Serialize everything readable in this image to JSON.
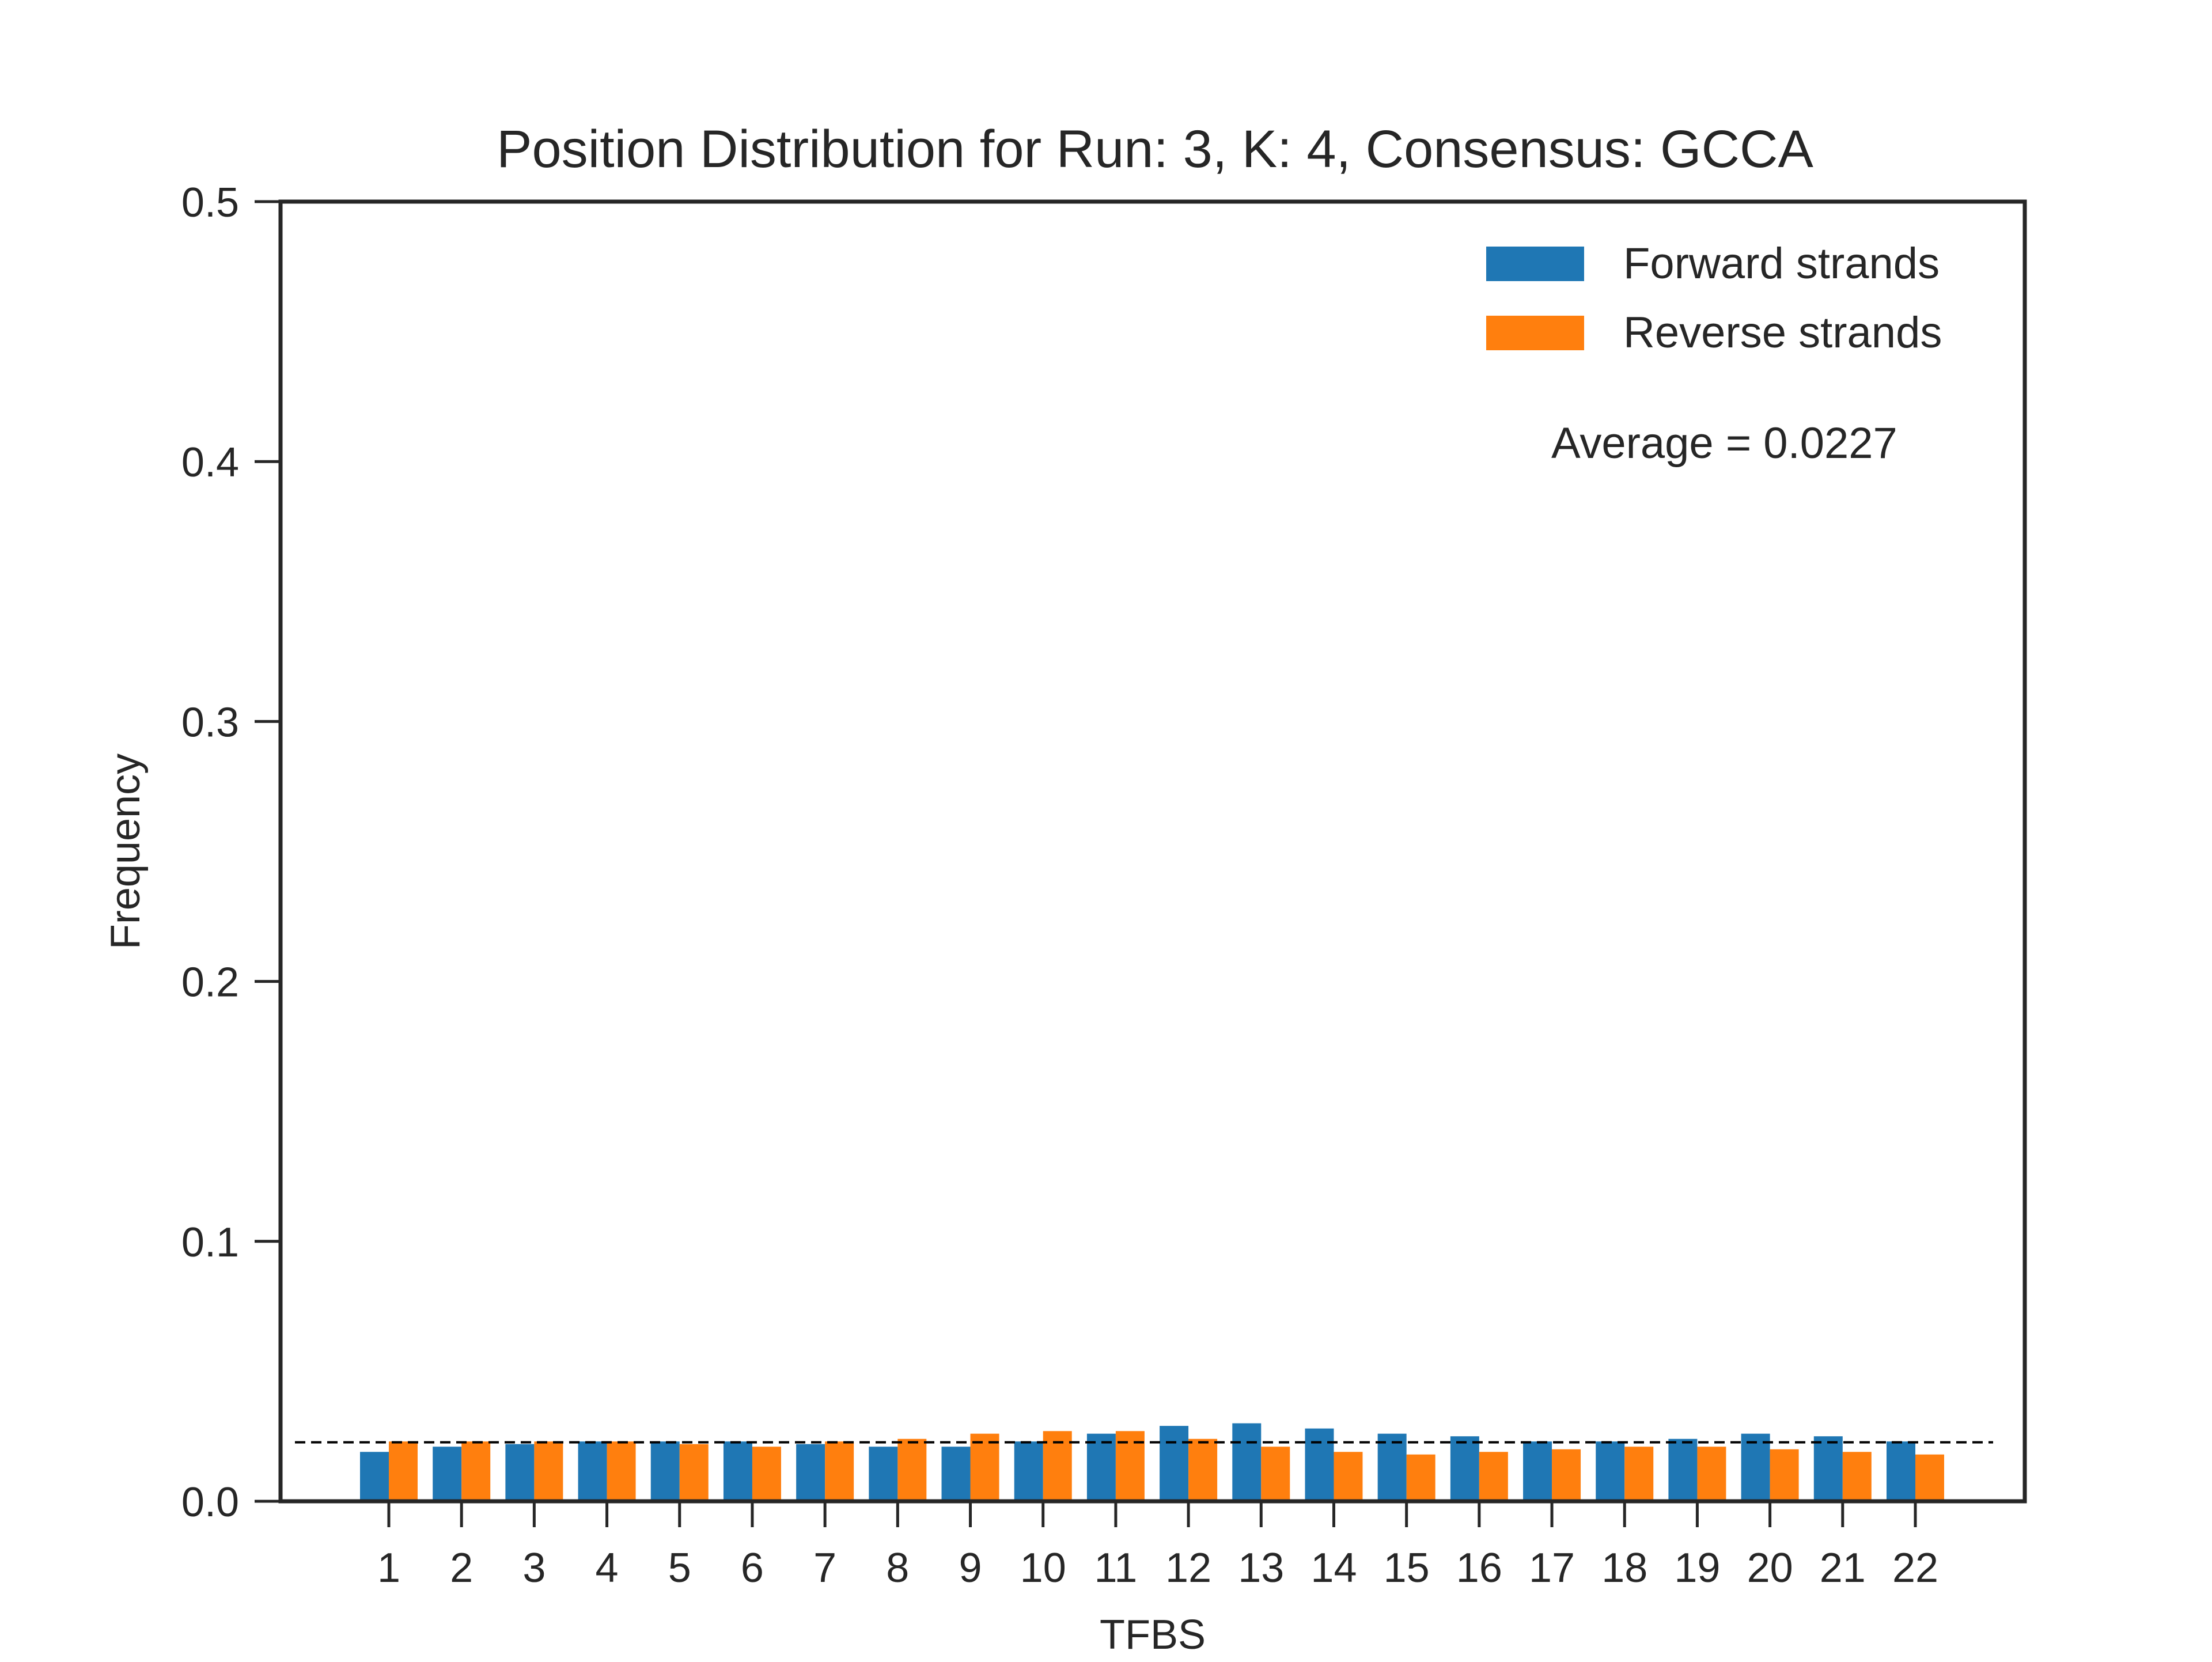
{
  "chart_data": {
    "type": "bar",
    "title": "Position Distribution for Run: 3, K: 4, Consensus: GCCA",
    "xlabel": "TFBS",
    "ylabel": "Frequency",
    "ylim": [
      0,
      0.5
    ],
    "yticks": [
      "0.0",
      "0.1",
      "0.2",
      "0.3",
      "0.4",
      "0.5"
    ],
    "categories": [
      "1",
      "2",
      "3",
      "4",
      "5",
      "6",
      "7",
      "8",
      "9",
      "10",
      "11",
      "12",
      "13",
      "14",
      "15",
      "16",
      "17",
      "18",
      "19",
      "20",
      "21",
      "22"
    ],
    "series": [
      {
        "name": "Forward strands",
        "color": "#1f77b4",
        "values": [
          0.019,
          0.021,
          0.022,
          0.023,
          0.023,
          0.023,
          0.022,
          0.021,
          0.021,
          0.023,
          0.026,
          0.029,
          0.03,
          0.028,
          0.026,
          0.025,
          0.023,
          0.023,
          0.024,
          0.026,
          0.025,
          0.023
        ]
      },
      {
        "name": "Reverse strands",
        "color": "#ff7f0e",
        "values": [
          0.023,
          0.023,
          0.023,
          0.023,
          0.022,
          0.021,
          0.023,
          0.024,
          0.026,
          0.027,
          0.027,
          0.024,
          0.021,
          0.019,
          0.018,
          0.019,
          0.02,
          0.021,
          0.021,
          0.02,
          0.019,
          0.018
        ]
      }
    ],
    "average": 0.0227,
    "average_label": "Average = 0.0227",
    "legend_position": "top-right",
    "grid": false
  }
}
